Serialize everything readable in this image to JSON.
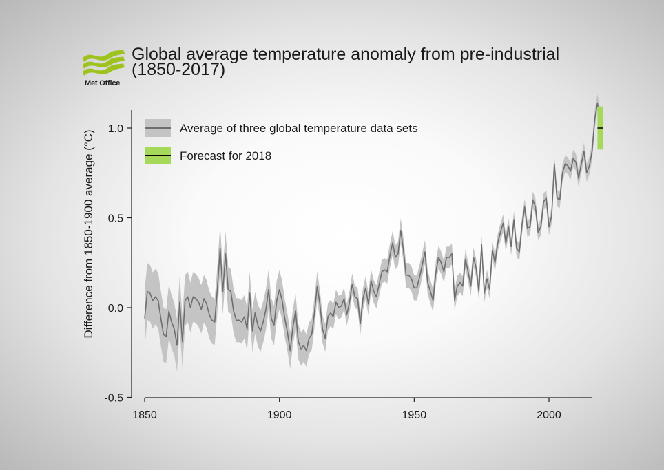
{
  "logo": {
    "name": "Met Office"
  },
  "title": {
    "line1": "Global average temperature anomaly from pre-industrial",
    "line2": "(1850-2017)"
  },
  "colors": {
    "line": "#6e6e6e",
    "band": "#c4c4c4",
    "forecast_band": "#a6d85a",
    "forecast_line": "#000000",
    "logo_green": "#9ec31e"
  },
  "chart_data": {
    "type": "line",
    "title": "Global average temperature anomaly from pre-industrial (1850-2017)",
    "xlabel": "",
    "ylabel": "Difference from 1850-1900 average (°C)",
    "xlim": [
      1850,
      2018
    ],
    "ylim": [
      -0.5,
      1.1
    ],
    "xticks": [
      1850,
      1900,
      1950,
      2000
    ],
    "yticks": [
      -0.5,
      0.0,
      0.5,
      1.0
    ],
    "xtick_labels": [
      "1850",
      "1900",
      "1950",
      "2000"
    ],
    "ytick_labels": [
      "-0.5",
      "0.0",
      "0.5",
      "1.0"
    ],
    "legend": [
      "Average of three global temperature data sets",
      "Forecast for 2018"
    ],
    "series": [
      {
        "name": "Average of three global temperature data sets",
        "x_start": 1850,
        "x_end": 2017,
        "values": [
          -0.06,
          0.09,
          0.08,
          0.04,
          0.06,
          0.04,
          -0.06,
          -0.15,
          -0.16,
          -0.02,
          -0.08,
          -0.12,
          -0.21,
          0.03,
          -0.19,
          0.04,
          0.06,
          0.0,
          0.06,
          0.05,
          0.03,
          -0.01,
          0.05,
          0.02,
          -0.04,
          -0.07,
          -0.08,
          0.11,
          0.33,
          0.09,
          0.3,
          0.1,
          0.09,
          -0.02,
          -0.07,
          -0.07,
          -0.08,
          -0.05,
          -0.12,
          0.08,
          -0.13,
          -0.03,
          -0.1,
          -0.13,
          -0.08,
          -0.01,
          0.1,
          -0.06,
          -0.1,
          0.04,
          0.1,
          0.04,
          -0.06,
          -0.14,
          -0.24,
          -0.11,
          -0.02,
          -0.19,
          -0.23,
          -0.21,
          -0.24,
          -0.17,
          -0.15,
          -0.03,
          0.12,
          0.02,
          -0.12,
          -0.17,
          -0.05,
          -0.03,
          -0.05,
          0.03,
          0.0,
          0.01,
          0.05,
          -0.04,
          0.03,
          0.13,
          0.06,
          0.05,
          -0.09,
          0.05,
          0.11,
          0.02,
          0.15,
          0.09,
          0.06,
          0.13,
          0.2,
          0.21,
          0.2,
          0.29,
          0.36,
          0.28,
          0.3,
          0.43,
          0.32,
          0.18,
          0.18,
          0.16,
          0.11,
          0.11,
          0.17,
          0.24,
          0.31,
          0.14,
          0.09,
          0.04,
          0.19,
          0.28,
          0.25,
          0.2,
          0.28,
          0.28,
          0.3,
          0.04,
          0.12,
          0.14,
          0.12,
          0.27,
          0.2,
          0.12,
          0.28,
          0.22,
          0.09,
          0.35,
          0.08,
          0.16,
          0.1,
          0.32,
          0.25,
          0.36,
          0.42,
          0.47,
          0.36,
          0.45,
          0.34,
          0.49,
          0.33,
          0.31,
          0.46,
          0.56,
          0.44,
          0.45,
          0.6,
          0.56,
          0.42,
          0.45,
          0.59,
          0.61,
          0.45,
          0.51,
          0.8,
          0.61,
          0.6,
          0.75,
          0.8,
          0.79,
          0.76,
          0.83,
          0.81,
          0.72,
          0.8,
          0.87,
          0.75,
          0.79,
          0.87,
          1.05,
          1.14,
          1.05
        ]
      }
    ],
    "band_halfwidth": {
      "note": "uncertainty half-width in °C, by year",
      "points": [
        [
          1850,
          0.16
        ],
        [
          1875,
          0.13
        ],
        [
          1900,
          0.11
        ],
        [
          1925,
          0.06
        ],
        [
          1950,
          0.07
        ],
        [
          1975,
          0.05
        ],
        [
          2000,
          0.045
        ],
        [
          2017,
          0.05
        ]
      ]
    },
    "forecast": {
      "name": "Forecast for 2018",
      "year": 2018,
      "central": 1.0,
      "low": 0.88,
      "high": 1.12
    }
  }
}
